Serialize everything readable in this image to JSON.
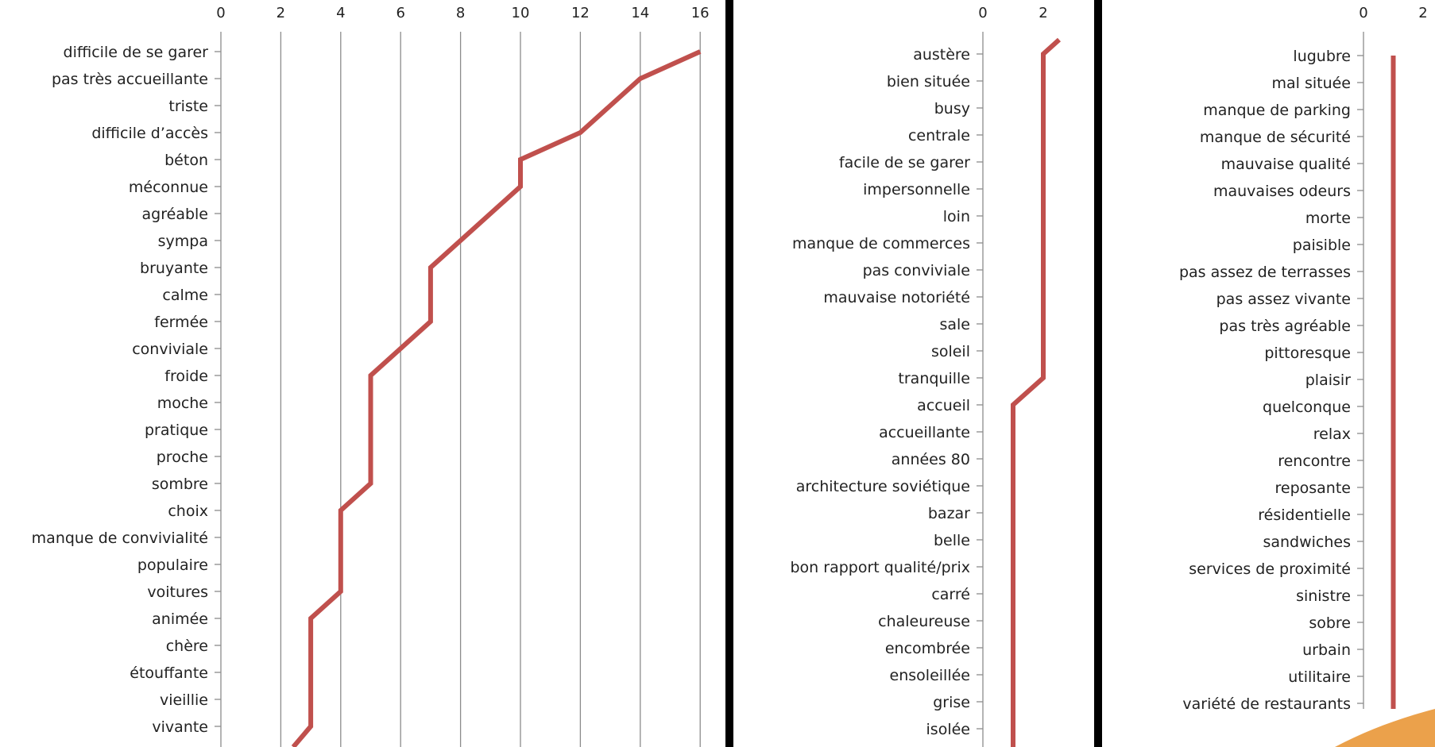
{
  "colors": {
    "line": "#c0504d",
    "grid": "#8c8c8c",
    "axis": "#8c8c8c",
    "divider": "#000000",
    "text": "#222222"
  },
  "chart_data": [
    {
      "type": "line",
      "orientation": "horizontal",
      "title": "",
      "xlabel": "",
      "ylabel": "",
      "xlim": [
        0,
        17
      ],
      "xticks": [
        0,
        2,
        4,
        6,
        8,
        10,
        12,
        14,
        16
      ],
      "grid": true,
      "categories": [
        "difficile de se garer",
        "pas très accueillante",
        "triste",
        "difficile d’accès",
        "béton",
        "méconnue",
        "agréable",
        "sympa",
        "bruyante",
        "calme",
        "fermée",
        "conviviale",
        "froide",
        "moche",
        "pratique",
        "proche",
        "sombre",
        "choix",
        "manque de convivialité",
        "populaire",
        "voitures",
        "animée",
        "chère",
        "étouffante",
        "vieillie",
        "vivante"
      ],
      "values": [
        16,
        14,
        null,
        12,
        10,
        10,
        null,
        null,
        7,
        null,
        7,
        null,
        5,
        null,
        null,
        null,
        5,
        4,
        null,
        null,
        4,
        3,
        null,
        null,
        null,
        3
      ]
    },
    {
      "type": "line",
      "orientation": "horizontal",
      "title": "",
      "xlabel": "",
      "ylabel": "",
      "xlim": [
        0,
        3
      ],
      "xticks": [
        0,
        2
      ],
      "grid": false,
      "categories": [
        "austère",
        "bien située",
        "busy",
        "centrale",
        "facile de se garer",
        "impersonnelle",
        "loin",
        "manque de commerces",
        "pas conviviale",
        "mauvaise notoriété",
        "sale",
        "soleil",
        "tranquille",
        "accueil",
        "accueillante",
        "années 80",
        "architecture soviétique",
        "bazar",
        "belle",
        "bon rapport qualité/prix",
        "carré",
        "chaleureuse",
        "encombrée",
        "ensoleillée",
        "grise",
        "isolée"
      ],
      "values": [
        2,
        2,
        2,
        2,
        2,
        2,
        2,
        2,
        2,
        2,
        2,
        2,
        2,
        1,
        1,
        1,
        1,
        1,
        1,
        1,
        1,
        1,
        1,
        1,
        1,
        1
      ]
    },
    {
      "type": "line",
      "orientation": "horizontal",
      "title": "",
      "xlabel": "",
      "ylabel": "",
      "xlim": [
        0,
        2
      ],
      "xticks": [
        0,
        2
      ],
      "grid": false,
      "categories": [
        "lugubre",
        "mal située",
        "manque de parking",
        "manque de sécurité",
        "mauvaise qualité",
        "mauvaises odeurs",
        "morte",
        "paisible",
        "pas assez de terrasses",
        "pas assez vivante",
        "pas très agréable",
        "pittoresque",
        "plaisir",
        "quelconque",
        "relax",
        "rencontre",
        "reposante",
        "résidentielle",
        "sandwiches",
        "services de proximité",
        "sinistre",
        "sobre",
        "urbain",
        "utilitaire",
        "variété de restaurants"
      ],
      "values": [
        1,
        1,
        1,
        1,
        1,
        1,
        1,
        1,
        1,
        1,
        1,
        1,
        1,
        1,
        1,
        1,
        1,
        1,
        1,
        1,
        1,
        1,
        1,
        1,
        1
      ]
    }
  ]
}
